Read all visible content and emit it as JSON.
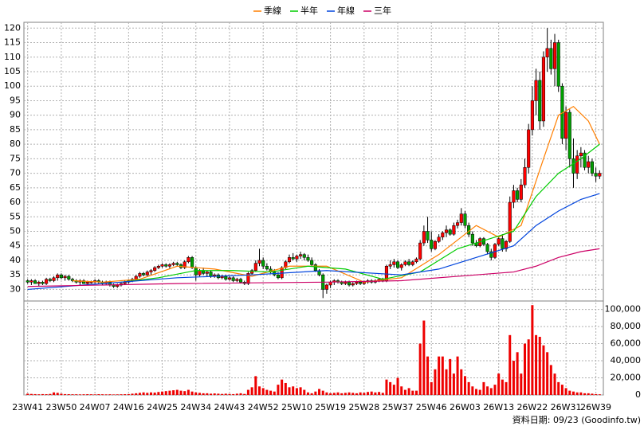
{
  "chart_data": {
    "type": "candlestick",
    "xlim": [
      -1,
      154
    ],
    "xticks": [
      {
        "value": 0,
        "label": "23W41"
      },
      {
        "value": 9,
        "label": "23W50"
      },
      {
        "value": 18,
        "label": "24W07"
      },
      {
        "value": 27,
        "label": "24W16"
      },
      {
        "value": 36,
        "label": "24W25"
      },
      {
        "value": 45,
        "label": "24W34"
      },
      {
        "value": 54,
        "label": "24W43"
      },
      {
        "value": 63,
        "label": "24W52"
      },
      {
        "value": 72,
        "label": "25W10"
      },
      {
        "value": 81,
        "label": "25W19"
      },
      {
        "value": 90,
        "label": "25W28"
      },
      {
        "value": 99,
        "label": "25W37"
      },
      {
        "value": 108,
        "label": "25W46"
      },
      {
        "value": 117,
        "label": "26W03"
      },
      {
        "value": 126,
        "label": "26W13"
      },
      {
        "value": 135,
        "label": "26W22"
      },
      {
        "value": 144,
        "label": "26W31"
      },
      {
        "value": 152,
        "label": "26W39"
      }
    ],
    "ylim": [
      26,
      122
    ],
    "yticks": [
      30,
      35,
      40,
      45,
      50,
      55,
      60,
      65,
      70,
      75,
      80,
      85,
      90,
      95,
      100,
      105,
      110,
      115,
      120
    ],
    "grid": true,
    "up_color": "#ff0000",
    "down_color": "#00a000",
    "ohlc": [
      [
        33,
        33.5,
        32,
        32.5
      ],
      [
        32.5,
        33.5,
        31.5,
        33
      ],
      [
        33,
        33.5,
        32,
        32
      ],
      [
        32,
        33,
        31,
        32.5
      ],
      [
        32.5,
        33,
        31.5,
        32
      ],
      [
        32,
        34,
        31.5,
        33.5
      ],
      [
        33.5,
        34,
        32.5,
        33
      ],
      [
        33,
        34.5,
        32.5,
        34
      ],
      [
        34,
        35.5,
        33,
        35
      ],
      [
        35,
        35.5,
        33.5,
        34
      ],
      [
        34,
        35,
        33,
        34.5
      ],
      [
        34.5,
        35,
        33,
        33.5
      ],
      [
        33.5,
        34,
        32.5,
        33
      ],
      [
        33,
        33.5,
        32,
        32.5
      ],
      [
        32.5,
        33.5,
        31.5,
        33
      ],
      [
        33,
        33.5,
        32,
        32
      ],
      [
        32,
        33,
        31.5,
        32.5
      ],
      [
        32.5,
        33,
        32,
        32.5
      ],
      [
        32.5,
        33.5,
        32,
        33
      ],
      [
        33,
        33.5,
        32,
        32.5
      ],
      [
        32.5,
        33,
        31.5,
        32
      ],
      [
        32,
        33,
        31.5,
        32.5
      ],
      [
        32.5,
        33,
        31,
        31.5
      ],
      [
        31.5,
        32,
        30.5,
        31
      ],
      [
        31,
        32,
        30.5,
        31.5
      ],
      [
        31.5,
        32.5,
        31,
        32
      ],
      [
        32,
        33,
        31.5,
        32.5
      ],
      [
        32.5,
        33.5,
        32,
        33
      ],
      [
        33,
        34,
        32.5,
        33.5
      ],
      [
        33.5,
        35,
        33,
        34.5
      ],
      [
        34.5,
        36,
        34,
        35.5
      ],
      [
        35.5,
        36,
        34.5,
        35
      ],
      [
        35,
        36.5,
        34.5,
        36
      ],
      [
        36,
        37,
        35,
        36.5
      ],
      [
        36.5,
        38,
        36,
        37.5
      ],
      [
        37.5,
        38.5,
        37,
        38
      ],
      [
        38,
        39,
        37.5,
        38.5
      ],
      [
        38.5,
        39,
        37.5,
        38
      ],
      [
        38,
        39,
        37,
        38.5
      ],
      [
        38.5,
        39.5,
        38,
        39
      ],
      [
        39,
        39.5,
        38,
        38.5
      ],
      [
        38.5,
        39,
        37,
        37.5
      ],
      [
        37.5,
        40,
        37,
        39.5
      ],
      [
        39.5,
        41.5,
        39,
        41
      ],
      [
        41,
        41.5,
        37,
        37.5
      ],
      [
        37.5,
        38,
        33,
        35
      ],
      [
        35,
        37,
        34.5,
        36.5
      ],
      [
        36.5,
        37.5,
        35,
        35.5
      ],
      [
        35.5,
        36.5,
        34.5,
        36
      ],
      [
        36,
        36.5,
        34,
        34.5
      ],
      [
        34.5,
        35.5,
        34,
        35
      ],
      [
        35,
        35.5,
        33.5,
        34
      ],
      [
        34,
        35,
        33.5,
        34.5
      ],
      [
        34.5,
        35,
        33,
        33.5
      ],
      [
        33.5,
        34.5,
        33,
        34
      ],
      [
        34,
        34.5,
        32.5,
        33
      ],
      [
        33,
        34,
        32.5,
        33.5
      ],
      [
        33.5,
        34,
        32,
        32.5
      ],
      [
        32.5,
        33,
        31.5,
        32
      ],
      [
        32,
        36,
        31.5,
        35.5
      ],
      [
        35.5,
        37,
        35,
        36.5
      ],
      [
        36.5,
        40,
        36,
        39
      ],
      [
        39,
        44,
        38,
        40
      ],
      [
        40,
        41,
        37,
        38
      ],
      [
        38,
        39,
        36.5,
        37
      ],
      [
        37,
        38,
        35.5,
        36
      ],
      [
        36,
        37,
        34.5,
        35
      ],
      [
        35,
        36,
        33.5,
        34
      ],
      [
        34,
        38,
        33.5,
        37.5
      ],
      [
        37.5,
        40,
        37,
        39.5
      ],
      [
        39.5,
        42,
        39,
        41
      ],
      [
        41,
        42.5,
        40,
        40.5
      ],
      [
        40.5,
        42,
        39.5,
        41.5
      ],
      [
        41.5,
        43,
        40.5,
        42
      ],
      [
        42,
        42.5,
        40,
        41
      ],
      [
        41,
        42,
        39.5,
        40
      ],
      [
        40,
        41,
        38,
        38.5
      ],
      [
        38.5,
        39,
        36,
        36.5
      ],
      [
        36.5,
        37,
        34.5,
        35
      ],
      [
        35,
        35.5,
        27,
        30
      ],
      [
        30,
        32,
        28.5,
        31.5
      ],
      [
        31.5,
        33,
        30.5,
        32.5
      ],
      [
        32.5,
        33.5,
        31.5,
        33
      ],
      [
        33,
        33.5,
        32,
        32.5
      ],
      [
        32.5,
        33,
        31.5,
        32
      ],
      [
        32,
        33,
        31.5,
        32.5
      ],
      [
        32.5,
        33,
        31,
        31.5
      ],
      [
        31.5,
        32.5,
        31,
        32
      ],
      [
        32,
        33,
        31.5,
        32.5
      ],
      [
        32.5,
        33,
        31.5,
        32
      ],
      [
        32,
        33,
        31.5,
        32.5
      ],
      [
        32.5,
        33.5,
        32,
        33
      ],
      [
        33,
        33.5,
        32,
        32.5
      ],
      [
        32.5,
        33.5,
        32,
        33
      ],
      [
        33,
        34,
        32.5,
        33.5
      ],
      [
        33.5,
        34,
        32.5,
        33
      ],
      [
        33,
        38.5,
        32.5,
        38
      ],
      [
        38,
        40,
        37,
        38.5
      ],
      [
        38.5,
        40.5,
        37.5,
        39.5
      ],
      [
        39.5,
        40,
        37,
        37.5
      ],
      [
        37.5,
        39,
        36.5,
        38.5
      ],
      [
        38.5,
        40,
        38,
        39.5
      ],
      [
        39.5,
        40.5,
        38,
        38.5
      ],
      [
        38.5,
        40,
        38,
        39.5
      ],
      [
        39.5,
        41,
        39,
        40.5
      ],
      [
        40.5,
        47,
        40,
        46
      ],
      [
        46,
        52,
        45,
        50
      ],
      [
        50,
        55,
        46,
        47
      ],
      [
        47,
        50,
        43,
        44
      ],
      [
        44,
        47,
        43.5,
        46.5
      ],
      [
        46.5,
        49,
        46,
        48
      ],
      [
        48,
        50,
        47,
        49.5
      ],
      [
        49.5,
        52,
        48,
        50.5
      ],
      [
        50.5,
        51,
        48.5,
        49
      ],
      [
        49,
        53,
        48.5,
        52
      ],
      [
        52,
        54,
        51,
        53
      ],
      [
        53,
        58,
        52,
        56
      ],
      [
        56,
        57,
        51,
        52
      ],
      [
        52,
        53,
        48,
        49
      ],
      [
        49,
        50,
        45,
        46
      ],
      [
        46,
        47,
        44.5,
        45
      ],
      [
        45,
        48,
        44.5,
        47.5
      ],
      [
        47.5,
        48,
        45,
        45.5
      ],
      [
        45.5,
        46,
        42,
        43
      ],
      [
        43,
        44,
        40,
        41
      ],
      [
        41,
        46,
        40.5,
        45.5
      ],
      [
        45.5,
        48,
        45,
        47.5
      ],
      [
        47.5,
        49,
        43,
        44
      ],
      [
        44,
        47,
        43,
        46.5
      ],
      [
        46.5,
        62,
        46,
        60
      ],
      [
        60,
        66,
        58,
        64
      ],
      [
        64,
        65,
        60,
        61
      ],
      [
        61,
        68,
        60,
        66
      ],
      [
        66,
        75,
        65,
        72
      ],
      [
        72,
        87,
        70,
        85
      ],
      [
        85,
        100,
        83,
        95
      ],
      [
        95,
        106,
        90,
        102
      ],
      [
        102,
        105,
        85,
        88
      ],
      [
        88,
        112,
        86,
        110
      ],
      [
        110,
        120,
        105,
        113
      ],
      [
        113,
        116,
        104,
        106
      ],
      [
        106,
        118,
        100,
        115
      ],
      [
        115,
        116,
        98,
        100
      ],
      [
        100,
        101,
        80,
        82
      ],
      [
        82,
        93,
        78,
        91
      ],
      [
        91,
        92,
        72,
        75
      ],
      [
        75,
        82,
        65,
        70
      ],
      [
        70,
        78,
        68,
        76
      ],
      [
        76,
        79,
        72,
        77
      ],
      [
        77,
        78,
        71,
        72
      ],
      [
        72,
        76,
        70,
        74
      ],
      [
        74,
        75,
        69,
        70
      ],
      [
        70,
        72,
        67,
        69
      ],
      [
        69,
        71,
        68,
        70
      ]
    ],
    "series": [
      {
        "name": "季線",
        "color": "#ff7f00",
        "x": [
          12,
          20,
          30,
          40,
          50,
          60,
          70,
          80,
          90,
          100,
          110,
          120,
          126,
          132,
          138,
          142,
          146,
          150,
          153
        ],
        "values": [
          33,
          32.5,
          33.5,
          38,
          37,
          34.5,
          38,
          38,
          32.5,
          34,
          42,
          52,
          48,
          52,
          75,
          90,
          93,
          88,
          80
        ]
      },
      {
        "name": "半年",
        "color": "#00cc00",
        "x": [
          25,
          35,
          45,
          55,
          65,
          75,
          85,
          95,
          105,
          115,
          125,
          130,
          136,
          142,
          148,
          153
        ],
        "values": [
          32.5,
          34,
          36.5,
          36.5,
          36,
          38,
          37,
          33.5,
          36,
          44,
          48,
          50,
          62,
          70,
          75,
          80
        ]
      },
      {
        "name": "年線",
        "color": "#0044dd",
        "x": [
          0,
          20,
          40,
          60,
          80,
          100,
          110,
          120,
          130,
          136,
          142,
          148,
          153
        ],
        "values": [
          30,
          32,
          34,
          35,
          36.5,
          35,
          37,
          41,
          45,
          52,
          57,
          61,
          63
        ]
      },
      {
        "name": "三年",
        "color": "#cc0066",
        "x": [
          0,
          40,
          80,
          100,
          120,
          130,
          136,
          142,
          148,
          153
        ],
        "values": [
          31,
          32,
          32.5,
          33,
          35,
          36,
          38,
          41,
          43,
          44
        ]
      }
    ],
    "volume": {
      "color": "#ee0000",
      "ylim": [
        0,
        108000
      ],
      "yticks": [
        0,
        {
          "value": 20000,
          "label": "20,000"
        },
        {
          "value": 40000,
          "label": "40,000"
        },
        {
          "value": 60000,
          "label": "60,000"
        },
        {
          "value": 80000,
          "label": "80,000"
        },
        {
          "value": 100000,
          "label": "100,000"
        }
      ],
      "values": [
        1500,
        1200,
        1000,
        800,
        1000,
        900,
        1200,
        3000,
        2500,
        1500,
        1000,
        900,
        800,
        800,
        700,
        800,
        900,
        800,
        700,
        900,
        800,
        700,
        800,
        600,
        700,
        800,
        900,
        1000,
        1500,
        2000,
        2500,
        3000,
        2500,
        3000,
        2800,
        3500,
        4000,
        4500,
        5000,
        5500,
        6000,
        5000,
        4500,
        6000,
        4000,
        3000,
        2500,
        2000,
        2000,
        1500,
        1800,
        1500,
        1200,
        1500,
        1200,
        1000,
        1500,
        2000,
        1200,
        6000,
        9000,
        22000,
        10000,
        8000,
        6000,
        5000,
        4000,
        12000,
        18000,
        14000,
        9000,
        10000,
        8000,
        9000,
        6000,
        3000,
        2000,
        4000,
        7000,
        5000,
        3000,
        2000,
        2500,
        3000,
        2000,
        2500,
        3000,
        2500,
        2000,
        3000,
        2500,
        3500,
        4000,
        3000,
        3500,
        2500,
        18000,
        15000,
        12000,
        20000,
        10000,
        6000,
        8000,
        5000,
        5000,
        60000,
        87000,
        45000,
        15000,
        30000,
        45000,
        45000,
        30000,
        42000,
        25000,
        45000,
        30000,
        22000,
        15000,
        10000,
        7000,
        6000,
        15000,
        10000,
        8000,
        12000,
        25000,
        18000,
        15000,
        70000,
        40000,
        50000,
        25000,
        60000,
        65000,
        105000,
        70000,
        68000,
        58000,
        50000,
        35000,
        25000,
        15000,
        12000,
        8000,
        5000,
        4000,
        3000,
        3000,
        2000,
        2000,
        1500,
        1000,
        800
      ]
    },
    "source": "資料日期: 09/23 (Goodinfo.tw)"
  }
}
